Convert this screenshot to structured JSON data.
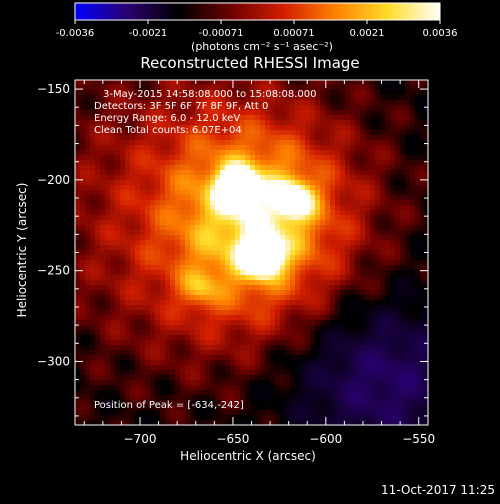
{
  "colorbar": {
    "ticks": [
      "-0.0036",
      "-0.0021",
      "-0.00071",
      "0.00071",
      "0.0021",
      "0.0036"
    ],
    "unit_label": "(photons cm⁻² s⁻¹ asec⁻²)",
    "range": [
      -0.0036,
      0.0036
    ],
    "palette": [
      "#0000ff",
      "#2a0070",
      "#000000",
      "#6e0000",
      "#d21e00",
      "#ff8200",
      "#ffdc28",
      "#ffffff"
    ]
  },
  "footer": {
    "timestamp": "11-Oct-2017 11:25"
  },
  "chart_data": {
    "type": "heatmap",
    "title": "Reconstructed RHESSI Image",
    "xlabel": "Heliocentric X (arcsec)",
    "ylabel": "Heliocentric Y (arcsec)",
    "xlim": [
      -735,
      -545
    ],
    "ylim": [
      -335,
      -145
    ],
    "x_ticks": [
      {
        "value": -700,
        "label": "−700"
      },
      {
        "value": -650,
        "label": "−650"
      },
      {
        "value": -600,
        "label": "−600"
      },
      {
        "value": -550,
        "label": "−550"
      }
    ],
    "y_ticks": [
      {
        "value": -150,
        "label": "−150"
      },
      {
        "value": -200,
        "label": "−200"
      },
      {
        "value": -250,
        "label": "−250"
      },
      {
        "value": -300,
        "label": "−300"
      }
    ],
    "annotations": [
      "3-May-2015 14:58:08.000 to 15:08:08.000",
      "Detectors: 3F 5F 6F 7F 8F 9F, Att 0",
      "Energy Range: 6.0 - 12.0 keV",
      "Clean     Total counts: 6.07E+04"
    ],
    "peak_label": "Position of Peak = [-634,-242]",
    "sources": [
      {
        "x": -634,
        "y": -242,
        "peak": 1.0
      },
      {
        "x": -648,
        "y": -204,
        "peak": 0.88
      },
      {
        "x": -617,
        "y": -211,
        "peak": 0.62
      },
      {
        "x": -668,
        "y": -260,
        "peak": 0.28
      }
    ]
  }
}
